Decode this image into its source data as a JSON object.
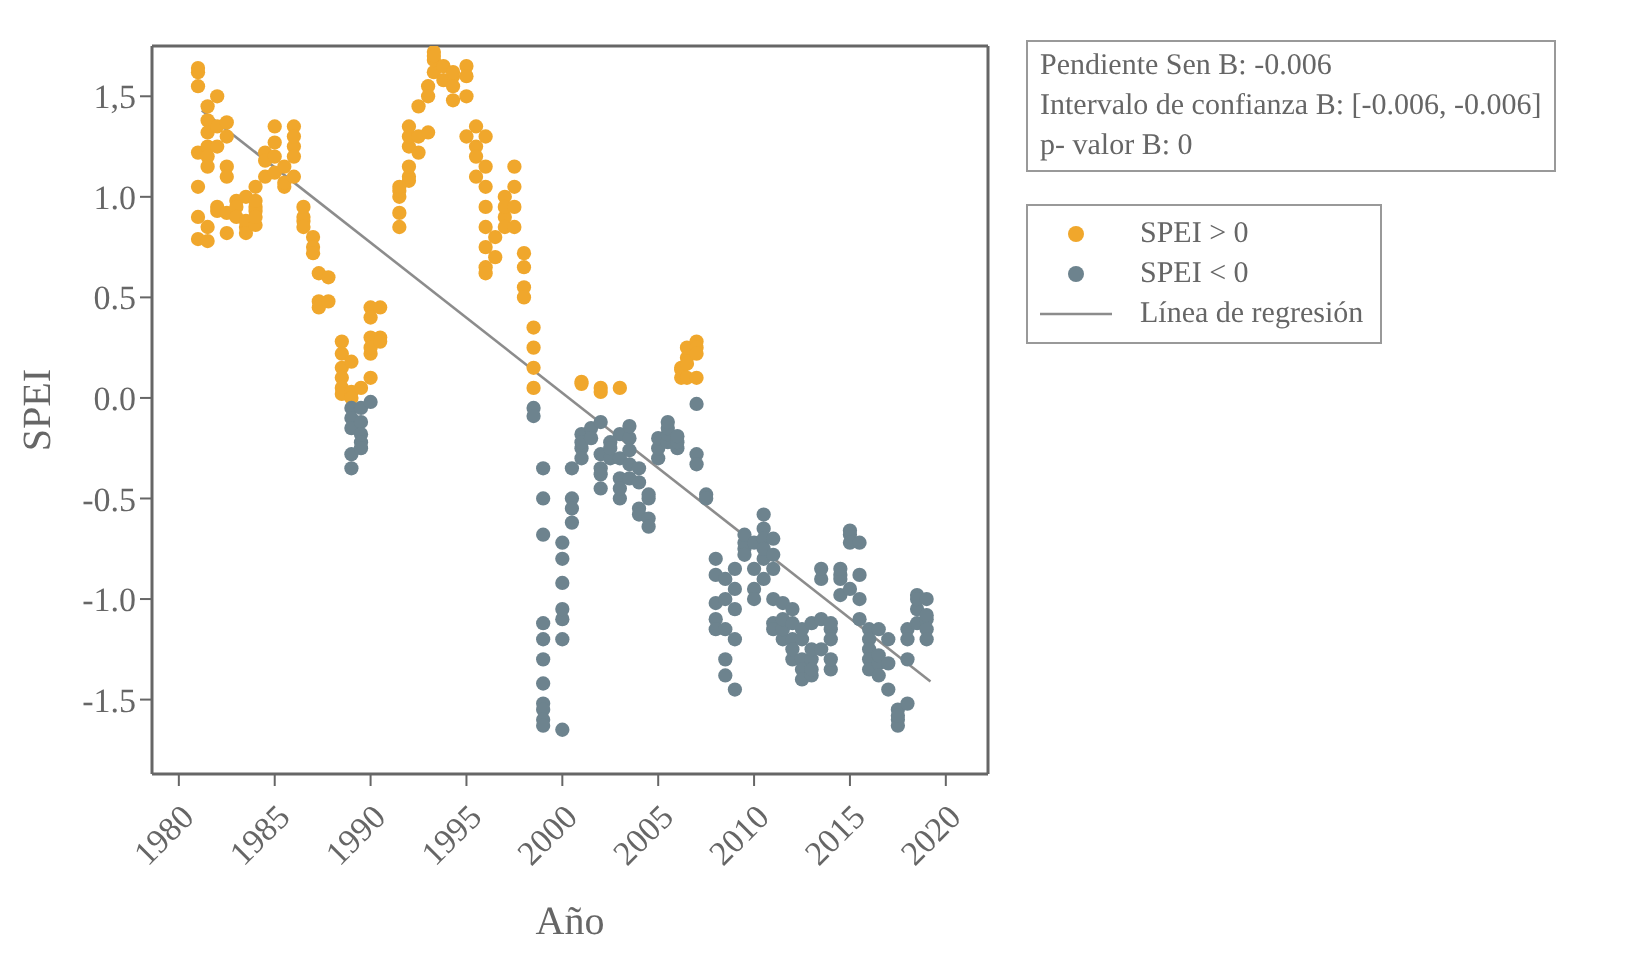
{
  "chart_data": {
    "type": "scatter",
    "xlabel": "Año",
    "ylabel": "SPEI",
    "xlim": [
      1978.6,
      2022.2
    ],
    "xticks": [
      1980,
      1985,
      1990,
      1995,
      2000,
      2005,
      2010,
      2015,
      2020
    ],
    "ylim": [
      -1.87,
      1.75
    ],
    "yticks": [
      {
        "value": 1.5,
        "label": "1,5"
      },
      {
        "value": 1.0,
        "label": "1.0"
      },
      {
        "value": 0.5,
        "label": "0.5"
      },
      {
        "value": 0.0,
        "label": "0.0"
      },
      {
        "value": -0.5,
        "label": "-0.5"
      },
      {
        "value": -1.0,
        "label": "-1.0"
      },
      {
        "value": -1.5,
        "label": "-1.5"
      }
    ],
    "legend": "right",
    "marker": "circle",
    "annotations": [
      "Pendiente Sen B: -0.006",
      "Intervalo de confianza B: [-0.006, -0.006]",
      "p- valor B: 0"
    ],
    "series": [
      {
        "name": "SPEI > 0",
        "color": "#f0a72c",
        "x": [
          1981,
          1981,
          1981,
          1981,
          1981,
          1981,
          1981,
          1981.5,
          1981.5,
          1981.5,
          1981.5,
          1981.5,
          1981.5,
          1981.5,
          1981.5,
          1982,
          1982,
          1982,
          1982,
          1982,
          1982.5,
          1982.5,
          1982.5,
          1982.5,
          1982.5,
          1982.5,
          1983,
          1983,
          1983,
          1983.5,
          1983.5,
          1983.5,
          1983.5,
          1984,
          1984,
          1984,
          1984,
          1984,
          1984,
          1984.5,
          1984.5,
          1984.5,
          1985,
          1985,
          1985,
          1985,
          1985.5,
          1985.5,
          1985.5,
          1986,
          1986,
          1986,
          1986,
          1986,
          1986.5,
          1986.5,
          1986.5,
          1986.5,
          1987,
          1987,
          1987,
          1987.3,
          1987.3,
          1987.3,
          1987.8,
          1987.8,
          1988.5,
          1988.5,
          1988.5,
          1988.5,
          1988.5,
          1988.5,
          1989,
          1989,
          1989,
          1989.5,
          1990,
          1990,
          1990,
          1990,
          1990,
          1990,
          1990.5,
          1990.5,
          1990.5,
          1991.5,
          1991.5,
          1991.5,
          1991.5,
          1991.5,
          1992,
          1992,
          1992,
          1992,
          1992,
          1992,
          1992.5,
          1992.5,
          1992.5,
          1993,
          1993,
          1993,
          1993.3,
          1993.3,
          1993.3,
          1993.3,
          1993.8,
          1993.8,
          1994.3,
          1994.3,
          1994.3,
          1994.3,
          1995,
          1995,
          1995,
          1995,
          1995.5,
          1995.5,
          1995.5,
          1995.5,
          1996,
          1996,
          1996,
          1996,
          1996,
          1996,
          1996,
          1996,
          1996.5,
          1996.5,
          1997,
          1997,
          1997,
          1997,
          1997.5,
          1997.5,
          1997.5,
          1997.5,
          1998,
          1998,
          1998,
          1998,
          1998.5,
          1998.5,
          1998.5,
          1998.5,
          2001,
          2001,
          2002,
          2002,
          2003,
          2006.2,
          2006.2,
          2006.2,
          2006.5,
          2006.5,
          2006.5,
          2006.5,
          2007,
          2007,
          2007,
          2007
        ],
        "values": [
          0.79,
          0.9,
          1.05,
          1.22,
          1.55,
          1.62,
          1.64,
          1.45,
          1.38,
          1.32,
          1.25,
          1.2,
          1.15,
          0.85,
          0.78,
          0.95,
          0.93,
          1.25,
          1.35,
          1.5,
          1.37,
          1.3,
          1.15,
          1.1,
          0.92,
          0.82,
          0.98,
          0.95,
          0.9,
          0.85,
          0.88,
          1.0,
          0.82,
          0.86,
          0.93,
          0.95,
          0.98,
          1.05,
          0.9,
          1.22,
          1.18,
          1.1,
          1.27,
          1.35,
          1.2,
          1.12,
          1.15,
          1.05,
          1.07,
          1.25,
          1.35,
          1.3,
          1.2,
          1.1,
          0.88,
          0.9,
          0.95,
          0.85,
          0.8,
          0.75,
          0.72,
          0.62,
          0.48,
          0.45,
          0.48,
          0.6,
          0.28,
          0.22,
          0.15,
          0.1,
          0.05,
          0.02,
          0.03,
          0.18,
          0.0,
          0.05,
          0.1,
          0.22,
          0.45,
          0.4,
          0.3,
          0.25,
          0.3,
          0.45,
          0.28,
          0.85,
          0.92,
          1.0,
          1.03,
          1.05,
          1.08,
          1.1,
          1.15,
          1.25,
          1.3,
          1.35,
          1.22,
          1.3,
          1.45,
          1.55,
          1.5,
          1.32,
          1.62,
          1.68,
          1.72,
          1.7,
          1.65,
          1.58,
          1.6,
          1.55,
          1.48,
          1.62,
          1.65,
          1.6,
          1.5,
          1.3,
          1.35,
          1.25,
          1.2,
          1.1,
          1.3,
          1.15,
          1.05,
          0.95,
          0.85,
          0.75,
          0.65,
          0.62,
          0.8,
          0.7,
          1.0,
          0.9,
          0.95,
          0.85,
          1.15,
          1.05,
          0.95,
          0.85,
          0.72,
          0.65,
          0.55,
          0.5,
          0.35,
          0.25,
          0.15,
          0.05,
          0.08,
          0.07,
          0.05,
          0.03,
          0.05,
          0.1,
          0.14,
          0.15,
          0.2,
          0.25,
          0.17,
          0.1,
          0.28,
          0.25,
          0.22,
          0.1
        ]
      },
      {
        "name": "SPEI < 0",
        "color": "#6d838e",
        "x": [
          1989,
          1989,
          1989,
          1989,
          1989,
          1989.5,
          1989.5,
          1989.5,
          1989.5,
          1989.5,
          1990,
          1998.5,
          1998.5,
          1999,
          1999,
          1999,
          1999,
          1999,
          1999,
          1999,
          1999,
          1999,
          1999,
          1999,
          2000,
          2000,
          2000,
          2000,
          2000,
          2000,
          2000,
          2000.5,
          2000.5,
          2000.5,
          2000.5,
          2001,
          2001,
          2001,
          2001,
          2001.5,
          2001.5,
          2002,
          2002,
          2002,
          2002,
          2002,
          2002.5,
          2002.5,
          2002.5,
          2003,
          2003,
          2003,
          2003,
          2003,
          2003.5,
          2003.5,
          2003.5,
          2003.5,
          2003.5,
          2004,
          2004,
          2004,
          2004,
          2004.5,
          2004.5,
          2004.5,
          2004.5,
          2005,
          2005,
          2005,
          2005.5,
          2005.5,
          2005.5,
          2005.5,
          2006,
          2006,
          2006,
          2007,
          2007,
          2007,
          2007.5,
          2007.5,
          2008,
          2008,
          2008,
          2008,
          2008,
          2008.5,
          2008.5,
          2008.5,
          2008.5,
          2008.5,
          2009,
          2009,
          2009,
          2009,
          2009,
          2009.5,
          2009.5,
          2009.5,
          2009.5,
          2010,
          2010,
          2010,
          2010,
          2010.5,
          2010.5,
          2010.5,
          2010.5,
          2010.5,
          2010.5,
          2011,
          2011,
          2011,
          2011,
          2011,
          2011,
          2011.5,
          2011.5,
          2011.5,
          2011.5,
          2012,
          2012,
          2012,
          2012,
          2012,
          2012.5,
          2012.5,
          2012.5,
          2012.5,
          2012.5,
          2013,
          2013,
          2013,
          2013,
          2013,
          2013.5,
          2013.5,
          2013.5,
          2013.5,
          2014,
          2014,
          2014,
          2014,
          2014,
          2014.5,
          2014.5,
          2014.5,
          2014.5,
          2015,
          2015,
          2015,
          2015,
          2015.5,
          2015.5,
          2015.5,
          2015.5,
          2016,
          2016,
          2016,
          2016,
          2016,
          2016.5,
          2016.5,
          2016.5,
          2016.5,
          2017,
          2017,
          2017,
          2017.5,
          2017.5,
          2017.5,
          2017.5,
          2018,
          2018,
          2018,
          2018,
          2018.5,
          2018.5,
          2018.5,
          2018.5,
          2019,
          2019,
          2019,
          2019,
          2019
        ],
        "values": [
          -0.05,
          -0.1,
          -0.15,
          -0.35,
          -0.28,
          -0.12,
          -0.18,
          -0.22,
          -0.25,
          -0.05,
          -0.02,
          -0.05,
          -0.09,
          -0.35,
          -0.5,
          -0.68,
          -1.12,
          -1.2,
          -1.3,
          -1.42,
          -1.52,
          -1.55,
          -1.6,
          -1.63,
          -1.1,
          -1.2,
          -1.05,
          -1.65,
          -0.92,
          -0.8,
          -0.72,
          -0.5,
          -0.55,
          -0.62,
          -0.35,
          -0.25,
          -0.18,
          -0.22,
          -0.3,
          -0.15,
          -0.2,
          -0.35,
          -0.45,
          -0.38,
          -0.28,
          -0.12,
          -0.3,
          -0.22,
          -0.25,
          -0.4,
          -0.5,
          -0.45,
          -0.3,
          -0.18,
          -0.2,
          -0.26,
          -0.33,
          -0.4,
          -0.14,
          -0.35,
          -0.42,
          -0.55,
          -0.58,
          -0.6,
          -0.64,
          -0.5,
          -0.48,
          -0.3,
          -0.25,
          -0.2,
          -0.22,
          -0.18,
          -0.15,
          -0.12,
          -0.25,
          -0.22,
          -0.19,
          -0.03,
          -0.28,
          -0.33,
          -0.48,
          -0.5,
          -0.8,
          -0.88,
          -1.02,
          -1.1,
          -1.15,
          -0.9,
          -1.0,
          -1.15,
          -1.3,
          -1.38,
          -1.45,
          -1.2,
          -1.05,
          -0.95,
          -0.85,
          -0.75,
          -0.72,
          -0.68,
          -0.78,
          -0.72,
          -0.85,
          -0.95,
          -1.0,
          -0.65,
          -0.7,
          -0.8,
          -0.75,
          -0.9,
          -0.58,
          -0.7,
          -0.78,
          -0.85,
          -1.0,
          -1.12,
          -1.15,
          -1.2,
          -1.15,
          -1.1,
          -1.02,
          -1.2,
          -1.05,
          -1.12,
          -1.3,
          -1.25,
          -1.2,
          -1.15,
          -1.3,
          -1.35,
          -1.4,
          -1.38,
          -1.3,
          -1.25,
          -1.35,
          -1.12,
          -0.9,
          -0.85,
          -1.1,
          -1.25,
          -1.15,
          -1.12,
          -1.2,
          -1.35,
          -1.3,
          -0.9,
          -0.88,
          -0.85,
          -0.98,
          -0.68,
          -0.66,
          -0.72,
          -0.95,
          -1.0,
          -1.1,
          -0.88,
          -0.72,
          -1.15,
          -1.2,
          -1.25,
          -1.3,
          -1.35,
          -1.32,
          -1.38,
          -1.28,
          -1.15,
          -1.45,
          -1.32,
          -1.2,
          -1.55,
          -1.6,
          -1.63,
          -1.58,
          -1.52,
          -1.3,
          -1.15,
          -1.2,
          -1.12,
          -1.05,
          -0.98,
          -1.0,
          -1.1,
          -1.08,
          -1.15,
          -1.2,
          -1.0
        ]
      },
      {
        "name": "Línea de regresión",
        "type": "line",
        "marker": "none",
        "color": "#8c8c8c",
        "x": [
          1981.2,
          2019.2
        ],
        "values": [
          1.43,
          -1.41
        ]
      }
    ]
  }
}
